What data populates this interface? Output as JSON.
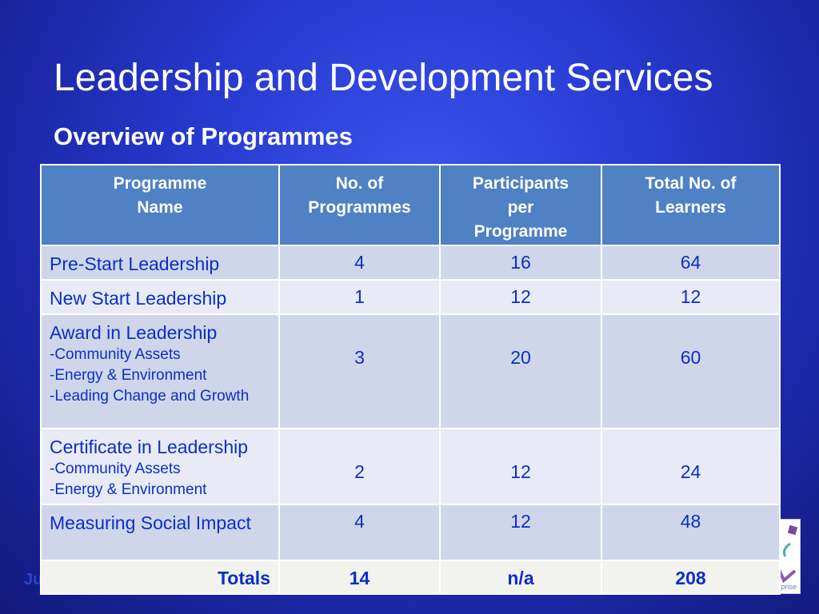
{
  "title": "Leadership and Development Services",
  "subtitle": "Overview of Programmes",
  "footer_text": "Ju",
  "logo_text": "Enterprise",
  "table": {
    "headers": [
      "Programme Name",
      "No. of Programmes",
      "Participants per Programme",
      "Total No. of Learners"
    ],
    "rows": [
      {
        "name": "Pre-Start Leadership",
        "sub": [],
        "programmes": "4",
        "participants": "16",
        "learners": "64"
      },
      {
        "name": "New Start Leadership",
        "sub": [],
        "programmes": "1",
        "participants": "12",
        "learners": "12"
      },
      {
        "name": "Award in Leadership",
        "sub": [
          "-Community Assets",
          "-Energy & Environment",
          "-Leading Change and Growth"
        ],
        "programmes": "3",
        "participants": "20",
        "learners": "60"
      },
      {
        "name": "Certificate in Leadership",
        "sub": [
          "-Community Assets",
          "-Energy & Environment"
        ],
        "programmes": "2",
        "participants": "12",
        "learners": "24"
      },
      {
        "name": "Measuring Social Impact",
        "sub": [],
        "programmes": "4",
        "participants": "12",
        "learners": "48"
      }
    ],
    "totals": {
      "label": "Totals",
      "programmes": "14",
      "participants": "n/a",
      "learners": "208"
    }
  },
  "colors": {
    "header_bg": "#4f81c4",
    "row_dark": "#cfd6ea",
    "row_light": "#e8ebf5",
    "text": "#0a2fc9"
  }
}
